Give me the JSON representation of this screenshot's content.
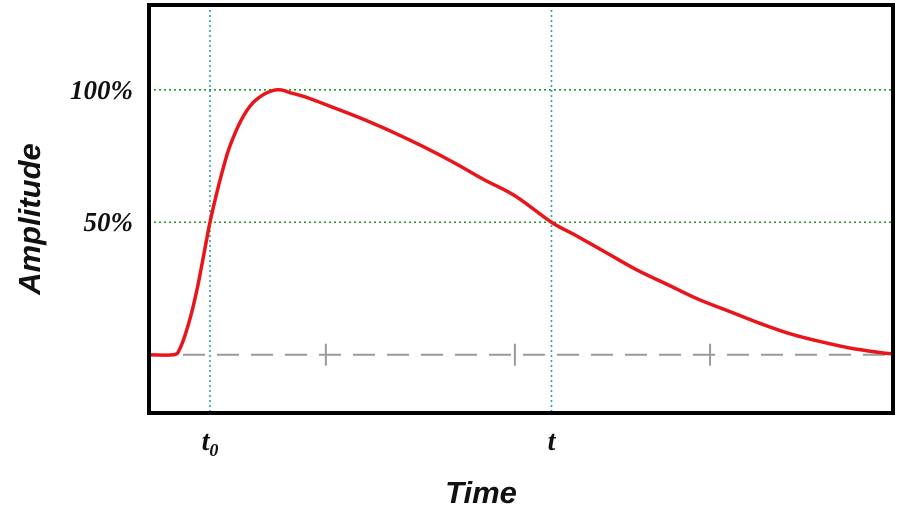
{
  "chart_data": {
    "type": "line",
    "title": "",
    "xlabel": "Time",
    "ylabel": "Amplitude",
    "x_ticks": [
      {
        "value": 10,
        "label": "t",
        "subscript": "0"
      },
      {
        "value": 66,
        "label": "t",
        "subscript": ""
      }
    ],
    "y_ticks": [
      {
        "value": 100,
        "label": "100%"
      },
      {
        "value": 50,
        "label": "50%"
      }
    ],
    "xlim": [
      0,
      122
    ],
    "ylim": [
      -22,
      132
    ],
    "grid": true,
    "baseline": {
      "value": 0,
      "style": "dashed",
      "minor_ticks": [
        29,
        60,
        92
      ]
    },
    "series": [
      {
        "name": "",
        "color": "#e8161b",
        "x": [
          0,
          4,
          5,
          6,
          7,
          8,
          9,
          10,
          11,
          12,
          13,
          14,
          15,
          16,
          17,
          18,
          19,
          20,
          21,
          22,
          23,
          26,
          30,
          35,
          40,
          45,
          50,
          55,
          60,
          66,
          70,
          75,
          80,
          85,
          90,
          95,
          100,
          105,
          110,
          115,
          120,
          122
        ],
        "y": [
          0,
          0,
          2,
          8,
          16,
          26,
          38,
          50,
          60,
          69,
          77,
          83,
          88,
          92,
          95,
          97,
          98.5,
          99.5,
          100,
          99.8,
          99,
          97,
          93.5,
          89,
          84,
          78.5,
          72.5,
          66,
          60,
          50,
          45,
          38.5,
          32,
          26.5,
          21,
          16.5,
          12,
          8,
          5,
          2.5,
          0.8,
          0.3
        ]
      }
    ],
    "colors": {
      "curve": "#e8161b",
      "h_grid": "#1f9b1f",
      "v_grid": "#2a9fb0",
      "baseline": "#9a9a9a",
      "frame": "#000000"
    }
  }
}
